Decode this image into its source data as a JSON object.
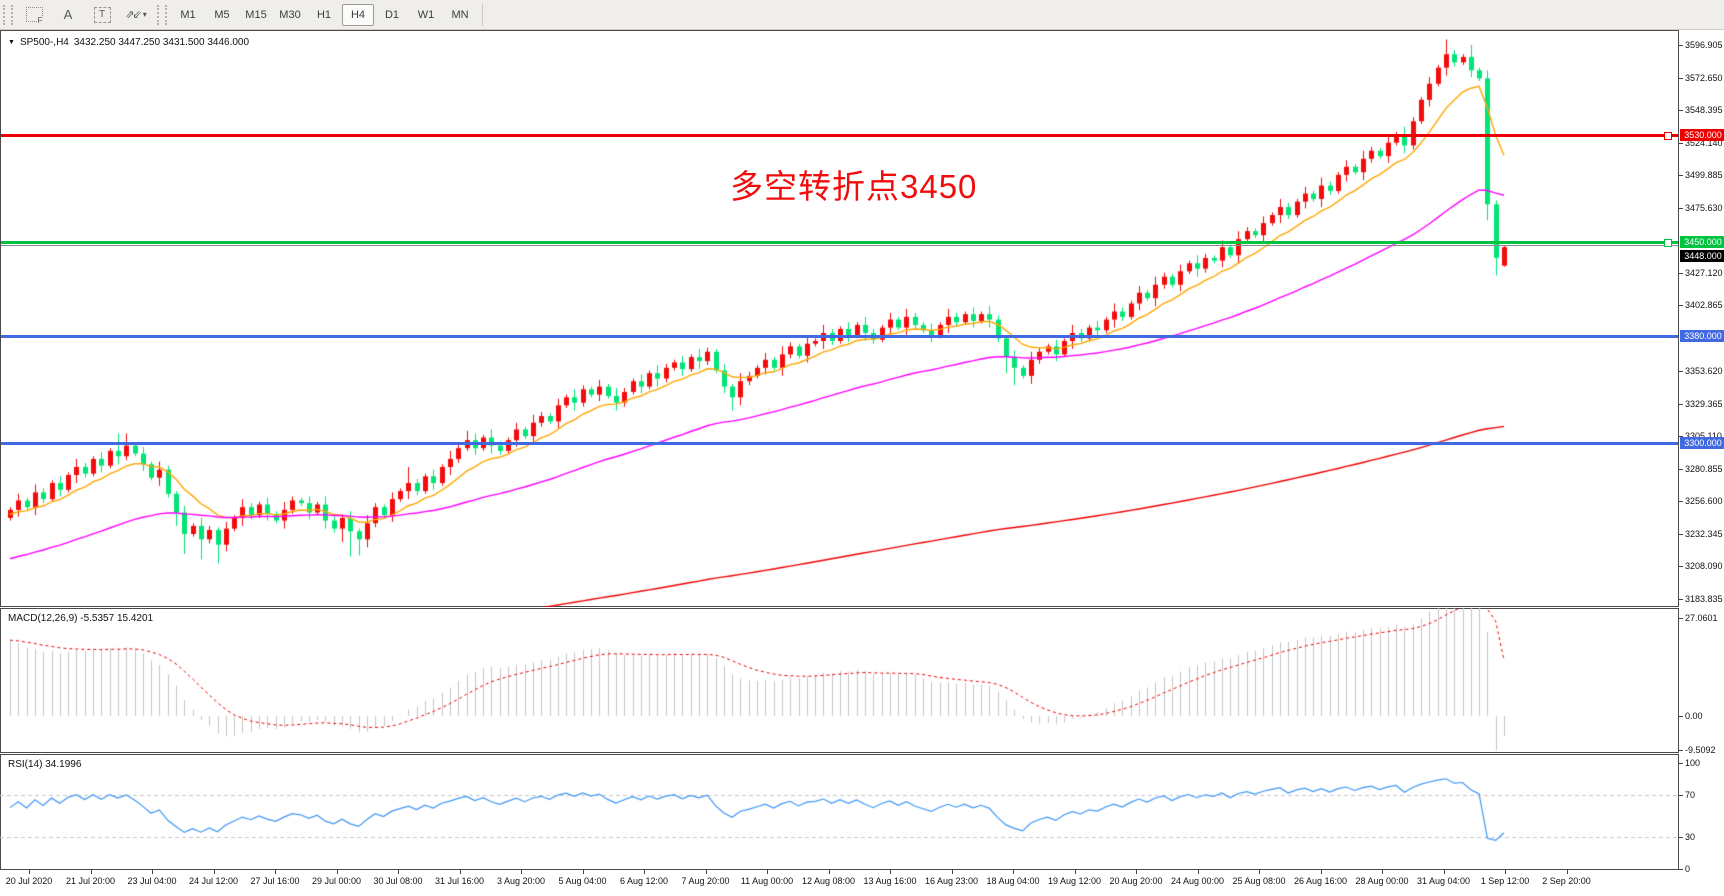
{
  "toolbar": {
    "icons": [
      {
        "name": "chart-window-tool-icon",
        "glyph": "F"
      },
      {
        "name": "insert-text-tool-icon",
        "glyph": "A"
      },
      {
        "name": "text-label-tool-icon",
        "glyph": "T"
      },
      {
        "name": "arrows-tool-icon",
        "glyph": "⇗⇙"
      }
    ],
    "caret": "▾",
    "timeframes": [
      "M1",
      "M5",
      "M15",
      "M30",
      "H1",
      "H4",
      "D1",
      "W1",
      "MN"
    ],
    "active_timeframe": "H4"
  },
  "chart_header": {
    "dropdown_glyph": "▼",
    "symbol_text": "SP500-,H4",
    "ohlc_text": "3432.250 3447.250 3431.500 3446.000"
  },
  "annotation": {
    "text": "多空转折点3450",
    "color": "#f20d0d"
  },
  "macd": {
    "label": "MACD(12,26,9)",
    "current_text": "-5.5357 15.4201"
  },
  "rsi": {
    "label": "RSI(14)",
    "current_text": "34.1996"
  },
  "chart_data": {
    "type": "candlestick",
    "title": "SP500- H4 chart with MACD and RSI",
    "symbol": "SP500-",
    "timeframe": "H4",
    "current_ohlc": {
      "open": 3432.25,
      "high": 3447.25,
      "low": 3431.5,
      "close": 3446.0
    },
    "ylim": [
      3178,
      3600
    ],
    "grid": false,
    "up_color": "#f20c0c",
    "down_color": "#00e575",
    "closes": [
      3250,
      3257,
      3252,
      3263,
      3258,
      3270,
      3265,
      3276,
      3282,
      3277,
      3288,
      3283,
      3294,
      3290,
      3298,
      3292,
      3284,
      3274,
      3280,
      3262,
      3248,
      3232,
      3238,
      3228,
      3235,
      3224,
      3236,
      3244,
      3252,
      3246,
      3254,
      3247,
      3242,
      3250,
      3257,
      3255,
      3248,
      3254,
      3242,
      3236,
      3244,
      3234,
      3228,
      3240,
      3252,
      3246,
      3258,
      3264,
      3270,
      3264,
      3275,
      3270,
      3282,
      3288,
      3296,
      3302,
      3296,
      3304,
      3298,
      3294,
      3302,
      3310,
      3305,
      3315,
      3320,
      3316,
      3328,
      3334,
      3330,
      3340,
      3336,
      3342,
      3335,
      3330,
      3338,
      3346,
      3342,
      3352,
      3348,
      3356,
      3360,
      3355,
      3364,
      3361,
      3368,
      3354,
      3342,
      3334,
      3346,
      3350,
      3356,
      3362,
      3356,
      3366,
      3372,
      3365,
      3374,
      3376,
      3382,
      3376,
      3385,
      3380,
      3388,
      3382,
      3377,
      3386,
      3392,
      3386,
      3394,
      3388,
      3384,
      3380,
      3388,
      3394,
      3390,
      3396,
      3391,
      3396,
      3392,
      3378,
      3364,
      3356,
      3350,
      3362,
      3368,
      3372,
      3366,
      3376,
      3382,
      3378,
      3386,
      3384,
      3392,
      3398,
      3394,
      3404,
      3412,
      3408,
      3418,
      3424,
      3418,
      3428,
      3434,
      3430,
      3438,
      3436,
      3446,
      3440,
      3452,
      3458,
      3455,
      3464,
      3470,
      3476,
      3470,
      3480,
      3486,
      3482,
      3492,
      3488,
      3500,
      3506,
      3502,
      3512,
      3518,
      3514,
      3524,
      3530,
      3522,
      3540,
      3556,
      3568,
      3580,
      3590,
      3584,
      3588,
      3578,
      3572,
      3478,
      3438,
      3446
    ],
    "last_candle": [
      3432.25,
      3447.25,
      3431.5,
      3446.0
    ],
    "wick_pattern": [
      2,
      5,
      2,
      6,
      3
    ],
    "wick_high_extra": {
      "13": 7,
      "14": 6,
      "48": 6,
      "55": 5,
      "173": 5,
      "176": 4
    },
    "wick_low_extra": {
      "20": 8,
      "21": 10,
      "23": 9,
      "25": 12,
      "40": 8,
      "41": 14,
      "42": 10,
      "87": 8,
      "120": 10,
      "121": 8,
      "178": 6,
      "179": 10
    },
    "moving_averages": [
      {
        "name": "fast-ma",
        "period": 10,
        "seed": 3246,
        "color": "#ffa600"
      },
      {
        "name": "mid-ma",
        "period": 50,
        "seed": 3212,
        "color": "#ff00ff"
      },
      {
        "name": "slow-ma",
        "period": 300,
        "seed": 3128,
        "color": "#ee0000"
      }
    ],
    "hlines": [
      {
        "name": "resistance-3530",
        "price": 3530,
        "label": "3530.000",
        "color": "#ee0000",
        "thickness": 3,
        "handle": true
      },
      {
        "name": "pivot-3450",
        "price": 3450,
        "label": "3450.000",
        "color": "#00c340",
        "thickness": 3,
        "handle": true
      },
      {
        "name": "support-3380",
        "price": 3380,
        "label": "3380.000",
        "color": "#4169e1",
        "thickness": 3,
        "handle": false
      },
      {
        "name": "support-3300",
        "price": 3300,
        "label": "3300.000",
        "color": "#4169e1",
        "thickness": 3,
        "handle": false
      }
    ],
    "current_price": {
      "label": "3448.000",
      "price": 3448,
      "line_color": "#8b8b8b",
      "tag_bg": "#000000"
    },
    "price_axis_ticks": [
      3596.905,
      3572.65,
      3548.395,
      3524.14,
      3499.885,
      3475.63,
      3427.12,
      3402.865,
      3353.62,
      3329.365,
      3305.11,
      3280.855,
      3256.6,
      3232.345,
      3208.09,
      3183.835
    ],
    "time_axis_labels": [
      "20 Jul 2020",
      "21 Jul 20:00",
      "23 Jul 04:00",
      "24 Jul 12:00",
      "27 Jul 16:00",
      "29 Jul 00:00",
      "30 Jul 08:00",
      "31 Jul 16:00",
      "3 Aug 20:00",
      "5 Aug 04:00",
      "6 Aug 12:00",
      "7 Aug 20:00",
      "11 Aug 00:00",
      "12 Aug 08:00",
      "13 Aug 16:00",
      "16 Aug 23:00",
      "18 Aug 04:00",
      "19 Aug 12:00",
      "20 Aug 20:00",
      "24 Aug 00:00",
      "25 Aug 08:00",
      "26 Aug 16:00",
      "28 Aug 00:00",
      "31 Aug 04:00",
      "1 Sep 12:00",
      "2 Sep 20:00"
    ],
    "macd": {
      "params": {
        "fast": 12,
        "slow": 26,
        "signal": 9
      },
      "seed_fast": 3246,
      "seed_slow": 3224,
      "seed_signal": 21,
      "hist_color": "#c4c4c4",
      "signal_color": "#ee0000",
      "axis_ticks": [
        27.0601,
        0.0,
        -9.5092
      ],
      "hist_tail": [
        -9.5092,
        -5.5357
      ],
      "signal_last": 15.4201,
      "current_macd": -5.5357,
      "current_signal": 15.4201
    },
    "rsi_indicator": {
      "period": 14,
      "color": "#3e96f4",
      "levels": [
        70,
        30
      ],
      "level_color": "#c8c8c8",
      "axis_ticks": [
        100,
        70,
        30,
        0
      ],
      "tail": [
        29,
        27,
        34.1996
      ],
      "current": 34.1996
    }
  }
}
